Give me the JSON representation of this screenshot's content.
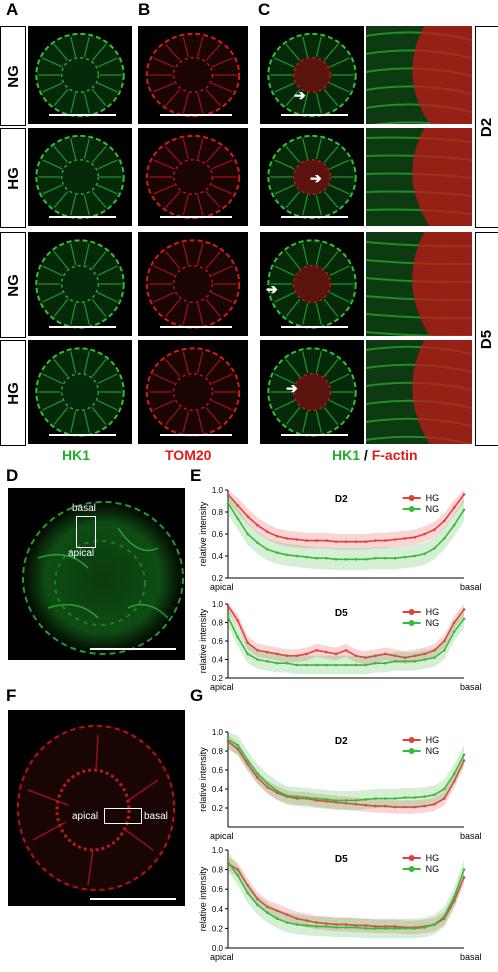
{
  "panels": {
    "A": "A",
    "B": "B",
    "C": "C",
    "D": "D",
    "E": "E",
    "F": "F",
    "G": "G"
  },
  "rows": [
    "NG",
    "HG",
    "NG",
    "HG"
  ],
  "timepoints": [
    "D2",
    "D5"
  ],
  "captions": {
    "hk1": "HK1",
    "tom20": "TOM20",
    "hk1_merge": "HK1",
    "slash": " / ",
    "factin": "F-actin"
  },
  "colors": {
    "green": "#1fae2a",
    "red": "#e0191b",
    "hg": "#e34040",
    "ng": "#3cb83c"
  },
  "image_labels": {
    "D_top": "basal",
    "D_bottom": "apical",
    "F_left": "apical",
    "F_right": "basal"
  },
  "chart_data": [
    {
      "type": "line",
      "title": "D2",
      "ylabel": "relative intensity",
      "xlabel_left": "apical",
      "xlabel_right": "basal",
      "ylim": [
        0.2,
        1.0
      ],
      "yticks": [
        "1.0",
        "0.8",
        "0.6",
        "0.4",
        "0.2"
      ],
      "series": [
        {
          "name": "HG",
          "values": [
            0.96,
            0.86,
            0.76,
            0.68,
            0.62,
            0.58,
            0.56,
            0.55,
            0.54,
            0.54,
            0.54,
            0.53,
            0.53,
            0.53,
            0.53,
            0.54,
            0.54,
            0.55,
            0.56,
            0.57,
            0.6,
            0.64,
            0.72,
            0.84,
            0.96
          ]
        },
        {
          "name": "NG",
          "values": [
            0.88,
            0.74,
            0.6,
            0.52,
            0.46,
            0.43,
            0.41,
            0.4,
            0.39,
            0.38,
            0.38,
            0.37,
            0.37,
            0.37,
            0.37,
            0.38,
            0.38,
            0.38,
            0.39,
            0.4,
            0.42,
            0.47,
            0.56,
            0.68,
            0.82
          ]
        }
      ]
    },
    {
      "type": "line",
      "title": "D5",
      "ylabel": "relative intensity",
      "xlabel_left": "apical",
      "xlabel_right": "basal",
      "ylim": [
        0.2,
        1.0
      ],
      "yticks": [
        "1.0",
        "0.8",
        "0.6",
        "0.4",
        "0.2"
      ],
      "series": [
        {
          "name": "HG",
          "values": [
            0.98,
            0.82,
            0.58,
            0.5,
            0.48,
            0.46,
            0.44,
            0.44,
            0.46,
            0.5,
            0.48,
            0.46,
            0.5,
            0.44,
            0.42,
            0.44,
            0.46,
            0.44,
            0.42,
            0.44,
            0.46,
            0.5,
            0.6,
            0.8,
            0.94
          ]
        },
        {
          "name": "NG",
          "values": [
            0.86,
            0.64,
            0.46,
            0.4,
            0.38,
            0.36,
            0.36,
            0.34,
            0.34,
            0.34,
            0.34,
            0.34,
            0.34,
            0.34,
            0.34,
            0.36,
            0.36,
            0.38,
            0.38,
            0.38,
            0.4,
            0.42,
            0.5,
            0.7,
            0.84
          ]
        }
      ]
    },
    {
      "type": "line",
      "title": "D2",
      "ylabel": "relative intensity",
      "xlabel_left": "apical",
      "xlabel_right": "basal",
      "ylim": [
        0.0,
        1.0
      ],
      "yticks": [
        "1.0",
        "0.8",
        "0.6",
        "0.4",
        "0.2"
      ],
      "series": [
        {
          "name": "HG",
          "values": [
            0.9,
            0.82,
            0.66,
            0.52,
            0.42,
            0.36,
            0.32,
            0.3,
            0.3,
            0.28,
            0.27,
            0.26,
            0.25,
            0.24,
            0.23,
            0.22,
            0.22,
            0.21,
            0.21,
            0.21,
            0.22,
            0.24,
            0.3,
            0.48,
            0.7
          ]
        },
        {
          "name": "NG",
          "values": [
            0.92,
            0.86,
            0.7,
            0.56,
            0.46,
            0.38,
            0.33,
            0.32,
            0.31,
            0.3,
            0.29,
            0.28,
            0.28,
            0.28,
            0.29,
            0.3,
            0.3,
            0.3,
            0.31,
            0.31,
            0.32,
            0.34,
            0.4,
            0.56,
            0.76
          ]
        }
      ]
    },
    {
      "type": "line",
      "title": "D5",
      "ylabel": "relative intensity",
      "xlabel_left": "apical",
      "xlabel_right": "basal",
      "ylim": [
        0.0,
        1.0
      ],
      "yticks": [
        "1.0",
        "0.8",
        "0.6",
        "0.4",
        "0.2",
        "0.0"
      ],
      "series": [
        {
          "name": "HG",
          "values": [
            0.86,
            0.8,
            0.64,
            0.5,
            0.42,
            0.38,
            0.34,
            0.3,
            0.28,
            0.26,
            0.25,
            0.24,
            0.24,
            0.23,
            0.23,
            0.22,
            0.22,
            0.22,
            0.21,
            0.21,
            0.22,
            0.24,
            0.3,
            0.48,
            0.72
          ]
        },
        {
          "name": "NG",
          "values": [
            0.88,
            0.74,
            0.56,
            0.44,
            0.36,
            0.3,
            0.26,
            0.24,
            0.23,
            0.22,
            0.22,
            0.21,
            0.21,
            0.21,
            0.2,
            0.2,
            0.2,
            0.2,
            0.2,
            0.2,
            0.21,
            0.24,
            0.32,
            0.52,
            0.8
          ]
        }
      ]
    }
  ]
}
